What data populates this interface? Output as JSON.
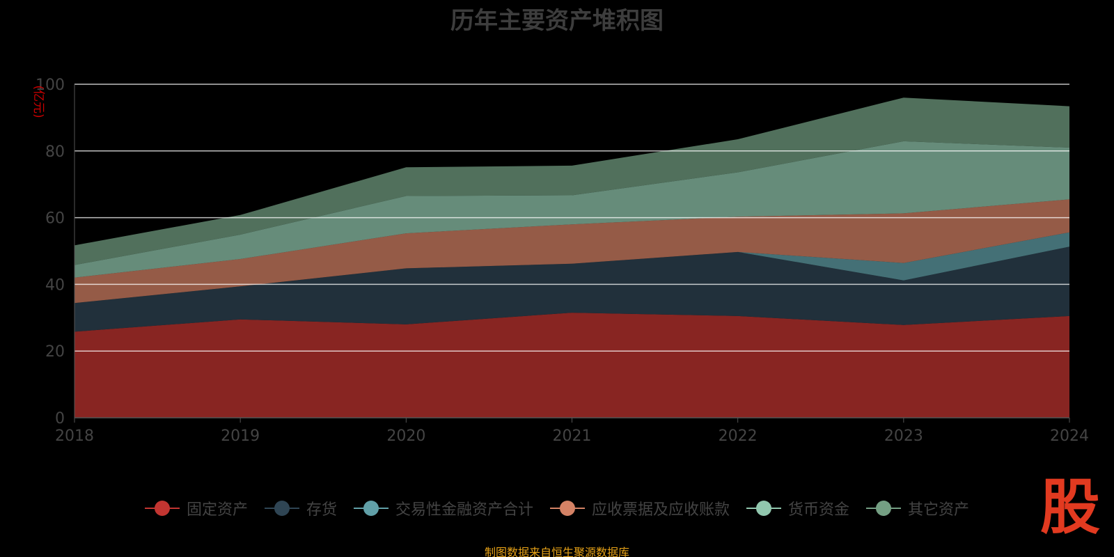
{
  "chart_data": {
    "type": "area",
    "stacked": true,
    "title": "历年主要资产堆积图",
    "ylabel": "(亿元)",
    "ylim": [
      0,
      100
    ],
    "yticks": [
      0,
      20,
      40,
      60,
      80,
      100
    ],
    "grid": true,
    "legend_position": "bottom",
    "categories": [
      "2018",
      "2019",
      "2020",
      "2021",
      "2022",
      "2023",
      "2024"
    ],
    "series": [
      {
        "name": "固定资产",
        "color": "#c23531",
        "values": [
          25.8,
          29.5,
          28.0,
          31.5,
          30.5,
          27.8,
          30.5
        ]
      },
      {
        "name": "存货",
        "color": "#2f4554",
        "values": [
          8.6,
          9.9,
          16.8,
          14.7,
          19.2,
          13.4,
          20.8
        ]
      },
      {
        "name": "交易性金融资产合计",
        "color": "#61a0a8",
        "values": [
          0.0,
          0.0,
          0.0,
          0.0,
          0.0,
          5.2,
          4.3
        ]
      },
      {
        "name": "应收票据及应收账款",
        "color": "#d48265",
        "values": [
          7.6,
          8.2,
          10.5,
          11.8,
          10.6,
          14.9,
          9.9
        ]
      },
      {
        "name": "货币资金",
        "color": "#91c7ae",
        "values": [
          3.8,
          7.3,
          11.2,
          8.7,
          13.3,
          21.6,
          15.5
        ]
      },
      {
        "name": "其它资产",
        "color": "#749f83",
        "values": [
          5.9,
          5.9,
          8.6,
          8.9,
          9.9,
          13.1,
          12.4
        ]
      }
    ]
  },
  "source_note": "制图数据来自恒生聚源数据库",
  "logo_text": "股"
}
